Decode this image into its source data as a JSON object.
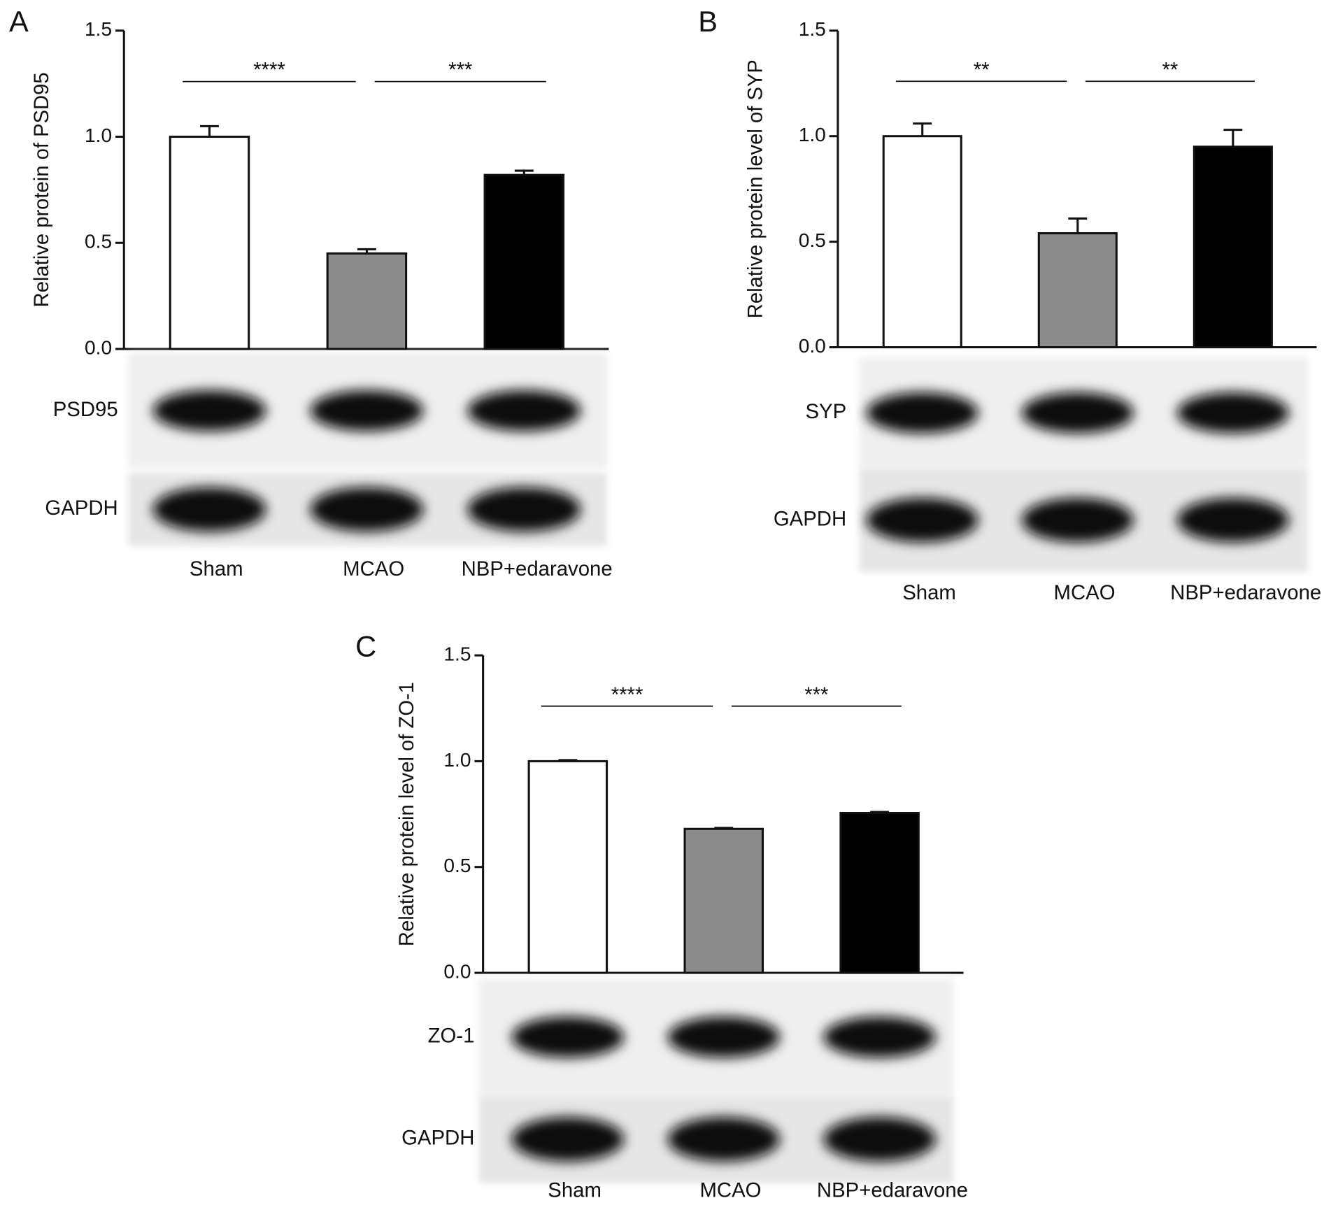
{
  "chart_data": [
    {
      "type": "bar",
      "panel": "A",
      "ylabel": "Relative protein of PSD95",
      "categories": [
        "Sham",
        "MCAO",
        "NBP+edaravone"
      ],
      "values": [
        1.0,
        0.45,
        0.82
      ],
      "errors": [
        0.05,
        0.02,
        0.02
      ],
      "colors": [
        "#ffffff",
        "#8c8c8c",
        "#000000"
      ],
      "ylim": [
        0,
        1.5
      ],
      "yticks": [
        {
          "value": 0,
          "label": "0.0"
        },
        {
          "value": 0.5,
          "label": "0.5"
        },
        {
          "value": 1,
          "label": "1.0"
        },
        {
          "value": 1.5,
          "label": "1.5"
        }
      ],
      "significance": [
        "****",
        "***"
      ],
      "blot_labels": [
        "PSD95",
        "GAPDH"
      ]
    },
    {
      "type": "bar",
      "panel": "B",
      "ylabel": "Relative protein level of SYP",
      "categories": [
        "Sham",
        "MCAO",
        "NBP+edaravone"
      ],
      "values": [
        1.0,
        0.54,
        0.95
      ],
      "errors": [
        0.06,
        0.07,
        0.08
      ],
      "colors": [
        "#ffffff",
        "#8c8c8c",
        "#000000"
      ],
      "ylim": [
        0,
        1.5
      ],
      "yticks": [
        {
          "value": 0,
          "label": "0.0"
        },
        {
          "value": 0.5,
          "label": "0.5"
        },
        {
          "value": 1,
          "label": "1.0"
        },
        {
          "value": 1.5,
          "label": "1.5"
        }
      ],
      "significance": [
        "**",
        "**"
      ],
      "blot_labels": [
        "SYP",
        "GAPDH"
      ]
    },
    {
      "type": "bar",
      "panel": "C",
      "ylabel": "Relative protein level of ZO-1",
      "categories": [
        "Sham",
        "MCAO",
        "NBP+edaravone"
      ],
      "values": [
        1.0,
        0.68,
        0.755
      ],
      "errors": [
        0.005,
        0.005,
        0.005
      ],
      "colors": [
        "#ffffff",
        "#8c8c8c",
        "#000000"
      ],
      "ylim": [
        0,
        1.5
      ],
      "yticks": [
        {
          "value": 0,
          "label": "0.0"
        },
        {
          "value": 0.5,
          "label": "0.5"
        },
        {
          "value": 1,
          "label": "1.0"
        },
        {
          "value": 1.5,
          "label": "1.5"
        }
      ],
      "significance": [
        "****",
        "***"
      ],
      "blot_labels": [
        "ZO-1",
        "GAPDH"
      ]
    }
  ]
}
